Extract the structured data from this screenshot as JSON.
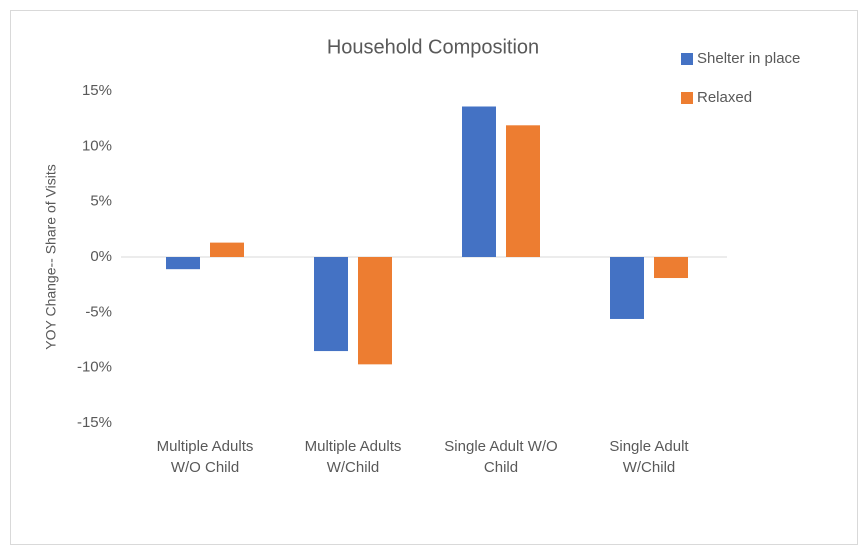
{
  "chart_data": {
    "type": "bar",
    "title": "Household Composition",
    "ylabel": "YOY Change-- Share of Visits",
    "categories": [
      "Multiple Adults\nW/O Child",
      "Multiple Adults\nW/Child",
      "Single Adult W/O\nChild",
      "Single Adult\nW/Child"
    ],
    "series": [
      {
        "name": "Shelter in place",
        "color": "#4472c4",
        "values": [
          -1.1,
          -8.5,
          13.6,
          -5.6
        ]
      },
      {
        "name": "Relaxed",
        "color": "#ed7d31",
        "values": [
          1.3,
          -9.7,
          11.9,
          -1.9
        ]
      }
    ],
    "ylim": [
      -15,
      15
    ],
    "yticks": [
      {
        "value": -15,
        "label": "-15%"
      },
      {
        "value": -10,
        "label": "-10%"
      },
      {
        "value": -5,
        "label": "-5%"
      },
      {
        "value": 0,
        "label": "0%"
      },
      {
        "value": 5,
        "label": "5%"
      },
      {
        "value": 10,
        "label": "10%"
      },
      {
        "value": 15,
        "label": "15%"
      }
    ],
    "grid": false,
    "legend": "top-right"
  }
}
